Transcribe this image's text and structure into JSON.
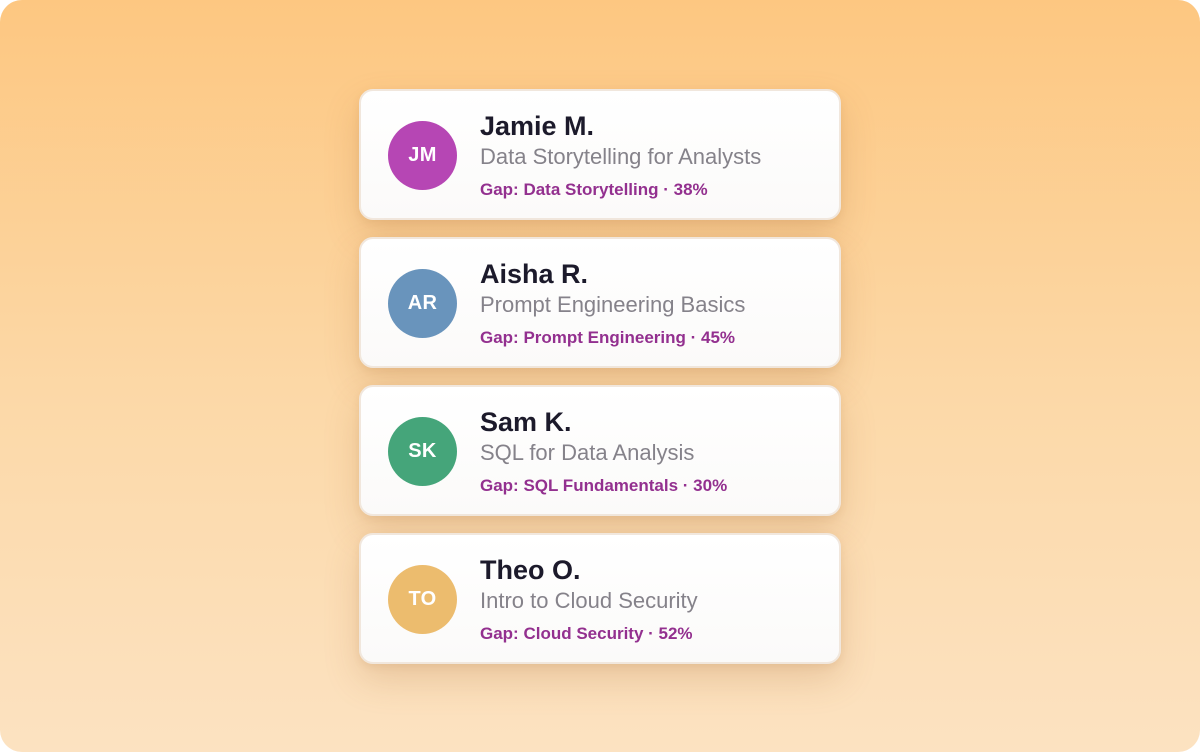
{
  "learners": [
    {
      "initials": "JM",
      "avatar_color": "#b646b4",
      "name": "Jamie M.",
      "course": "Data Storytelling for Analysts",
      "gap": "Gap: Data Storytelling · 38%"
    },
    {
      "initials": "AR",
      "avatar_color": "#6994bc",
      "name": "Aisha R.",
      "course": "Prompt Engineering Basics",
      "gap": "Gap: Prompt Engineering · 45%"
    },
    {
      "initials": "SK",
      "avatar_color": "#45a57a",
      "name": "Sam K.",
      "course": "SQL for Data Analysis",
      "gap": "Gap: SQL Fundamentals · 30%"
    },
    {
      "initials": "TO",
      "avatar_color": "#ecbc6e",
      "name": "Theo O.",
      "course": "Intro to Cloud Security",
      "gap": "Gap: Cloud Security · 52%"
    }
  ]
}
